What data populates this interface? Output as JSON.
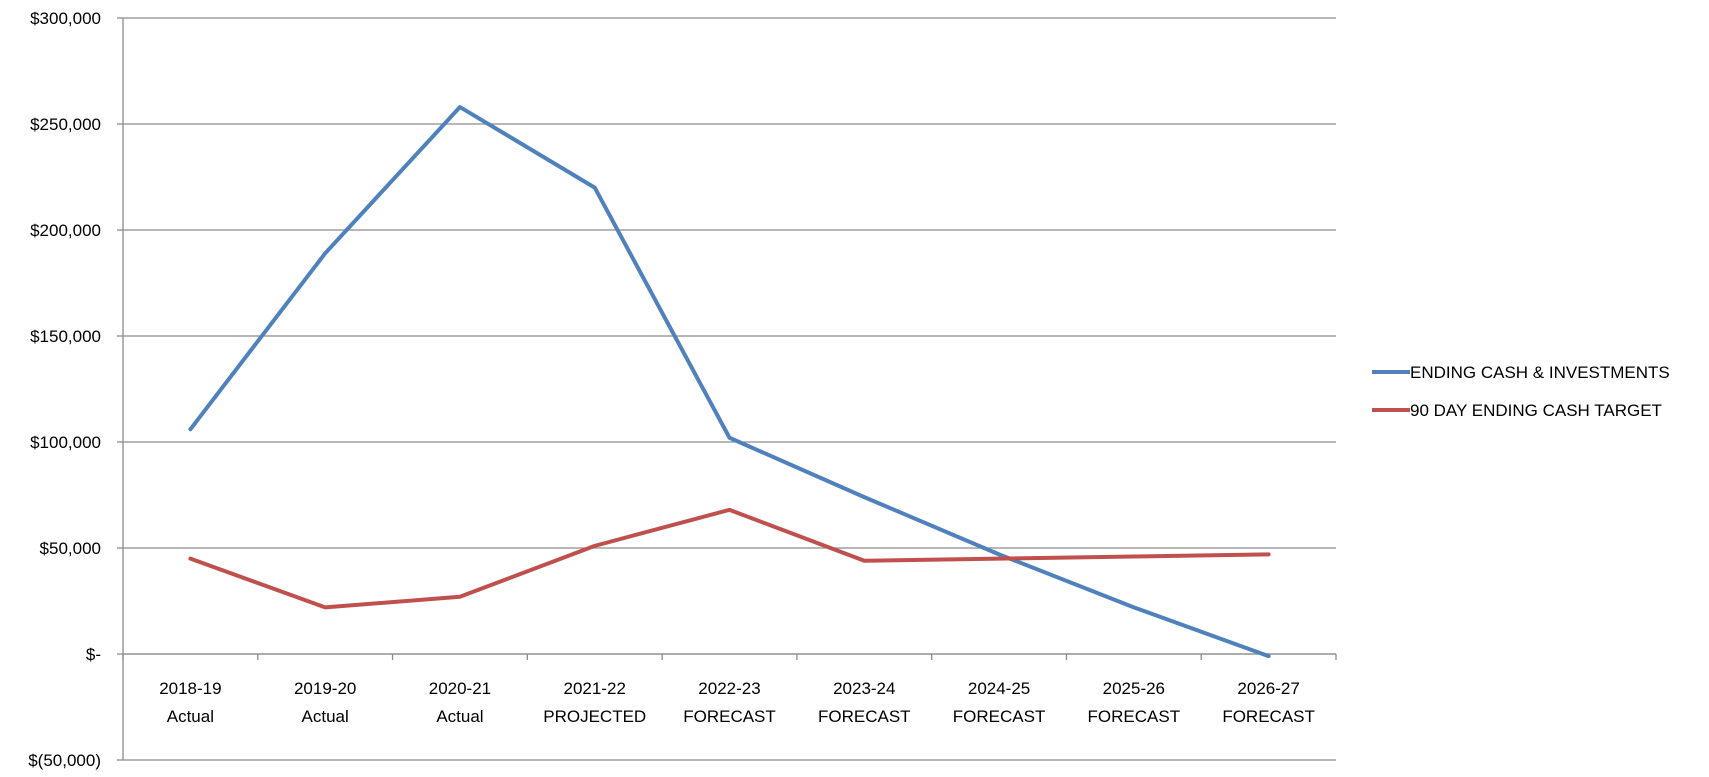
{
  "chart_data": {
    "type": "line",
    "title": "",
    "xlabel": "",
    "ylabel": "",
    "categories": [
      [
        "2018-19",
        "Actual"
      ],
      [
        "2019-20",
        "Actual"
      ],
      [
        "2020-21",
        "Actual"
      ],
      [
        "2021-22",
        "PROJECTED"
      ],
      [
        "2022-23",
        "FORECAST"
      ],
      [
        "2023-24",
        "FORECAST"
      ],
      [
        "2024-25",
        "FORECAST"
      ],
      [
        "2025-26",
        "FORECAST"
      ],
      [
        "2026-27",
        "FORECAST"
      ]
    ],
    "ylim": [
      -50000,
      300000
    ],
    "yticks": [
      -50000,
      0,
      50000,
      100000,
      150000,
      200000,
      250000,
      300000
    ],
    "ytick_labels": [
      "$(50,000)",
      "$-",
      "$50,000",
      "$100,000",
      "$150,000",
      "$200,000",
      "$250,000",
      "$300,000"
    ],
    "grid": true,
    "legend_position": "right",
    "series": [
      {
        "name": "ENDING CASH & INVESTMENTS",
        "color": "#4F81BD",
        "values": [
          106000,
          189000,
          258000,
          220000,
          102000,
          74000,
          47000,
          22000,
          -1000
        ]
      },
      {
        "name": "90 DAY ENDING CASH TARGET",
        "color": "#C0504D",
        "values": [
          45000,
          22000,
          27000,
          51000,
          68000,
          44000,
          45000,
          46000,
          47000
        ]
      }
    ]
  }
}
